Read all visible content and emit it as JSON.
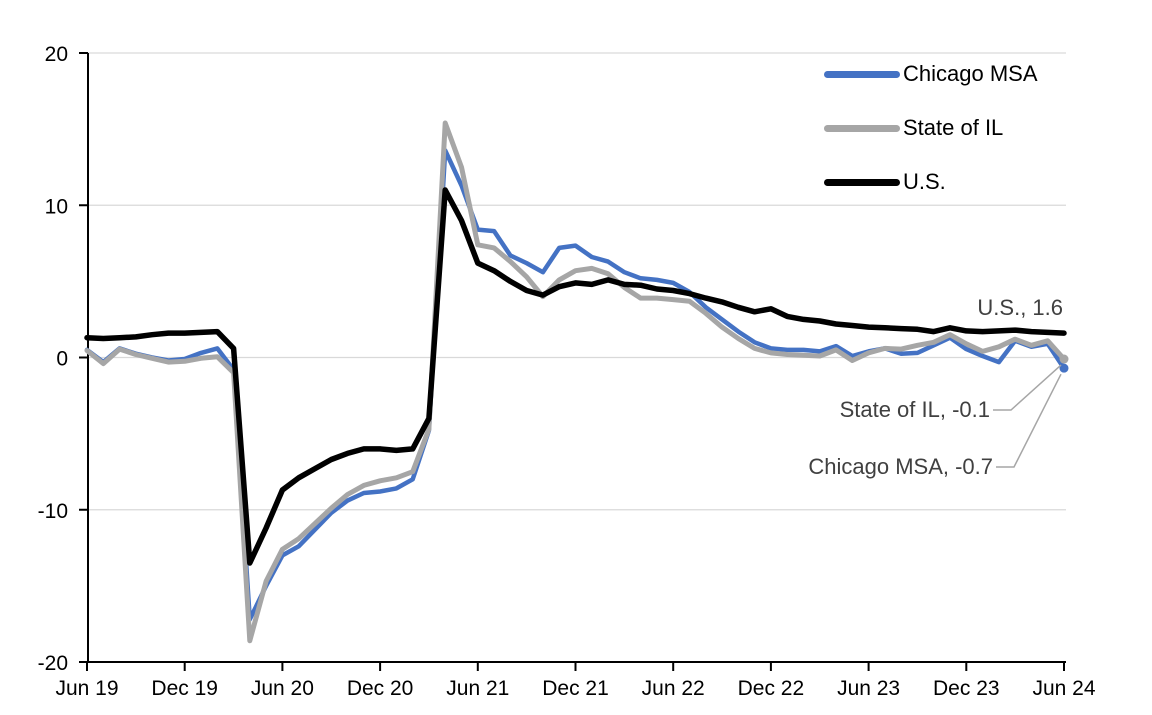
{
  "chart_data": {
    "type": "line",
    "title": "",
    "xlabel": "",
    "ylabel": "",
    "frequency": "monthly",
    "x_range": [
      "Jun 19",
      "Jun 24"
    ],
    "x_tick_labels": [
      "Jun 19",
      "Dec 19",
      "Jun 20",
      "Dec 20",
      "Jun 21",
      "Dec 21",
      "Jun 22",
      "Dec 22",
      "Jun 23",
      "Dec 23",
      "Jun 24"
    ],
    "ylim": [
      -20,
      20
    ],
    "yticks": [
      20,
      10,
      0,
      -10,
      -20
    ],
    "grid": "horizontal",
    "gridline_color": "#D9D9D9",
    "axis_color": "#000000",
    "legend_position": "top-right",
    "series": [
      {
        "name": "Chicago MSA",
        "color": "#4472C4",
        "stroke_width": 4.5,
        "end_marker": true,
        "values": [
          0.5,
          -0.3,
          0.6,
          0.25,
          0.0,
          -0.2,
          -0.1,
          0.3,
          0.6,
          -0.8,
          -17.2,
          -15.0,
          -13.0,
          -12.4,
          -11.3,
          -10.2,
          -9.4,
          -8.9,
          -8.8,
          -8.6,
          -8.0,
          -4.8,
          13.6,
          11.3,
          8.4,
          8.3,
          6.7,
          6.2,
          5.6,
          7.2,
          7.35,
          6.6,
          6.3,
          5.6,
          5.2,
          5.1,
          4.9,
          4.3,
          3.3,
          2.5,
          1.7,
          1.0,
          0.6,
          0.5,
          0.5,
          0.4,
          0.75,
          0.1,
          0.4,
          0.6,
          0.25,
          0.3,
          0.8,
          1.3,
          0.55,
          0.1,
          -0.3,
          1.1,
          0.7,
          0.9,
          -0.7
        ]
      },
      {
        "name": "State of IL",
        "color": "#A6A6A6",
        "stroke_width": 5,
        "end_marker": true,
        "values": [
          0.45,
          -0.4,
          0.55,
          0.2,
          -0.05,
          -0.3,
          -0.25,
          -0.05,
          0.05,
          -1.0,
          -18.6,
          -14.7,
          -12.6,
          -11.9,
          -10.9,
          -9.9,
          -9.0,
          -8.4,
          -8.1,
          -7.9,
          -7.5,
          -4.7,
          15.4,
          12.5,
          7.4,
          7.2,
          6.3,
          5.3,
          4.0,
          5.1,
          5.7,
          5.85,
          5.5,
          4.6,
          3.9,
          3.9,
          3.8,
          3.7,
          2.9,
          2.0,
          1.25,
          0.6,
          0.3,
          0.2,
          0.15,
          0.1,
          0.5,
          -0.2,
          0.3,
          0.6,
          0.55,
          0.8,
          1.0,
          1.5,
          0.9,
          0.4,
          0.7,
          1.2,
          0.8,
          1.1,
          -0.1
        ]
      },
      {
        "name": "U.S.",
        "color": "#000000",
        "stroke_width": 5.5,
        "end_marker": false,
        "values": [
          1.3,
          1.25,
          1.3,
          1.35,
          1.5,
          1.6,
          1.6,
          1.65,
          1.7,
          0.6,
          -13.5,
          -11.2,
          -8.7,
          -7.9,
          -7.3,
          -6.7,
          -6.3,
          -6.0,
          -6.0,
          -6.1,
          -6.0,
          -4.0,
          11.0,
          9.0,
          6.2,
          5.7,
          5.0,
          4.4,
          4.1,
          4.65,
          4.9,
          4.8,
          5.1,
          4.8,
          4.75,
          4.5,
          4.4,
          4.2,
          3.9,
          3.65,
          3.3,
          3.0,
          3.2,
          2.7,
          2.5,
          2.4,
          2.2,
          2.1,
          2.0,
          1.95,
          1.9,
          1.85,
          1.7,
          1.95,
          1.75,
          1.7,
          1.75,
          1.8,
          1.7,
          1.65,
          1.6
        ]
      }
    ],
    "annotations": [
      {
        "id": "us",
        "text": "U.S., 1.6",
        "series": "U.S.",
        "value": 1.6,
        "leader": false
      },
      {
        "id": "il",
        "text": "State of IL, -0.1",
        "series": "State of IL",
        "value": -0.1,
        "leader": true
      },
      {
        "id": "chicago",
        "text": "Chicago MSA, -0.7",
        "series": "Chicago MSA",
        "value": -0.7,
        "leader": true
      }
    ],
    "leader_line_color": "#A6A6A6"
  }
}
